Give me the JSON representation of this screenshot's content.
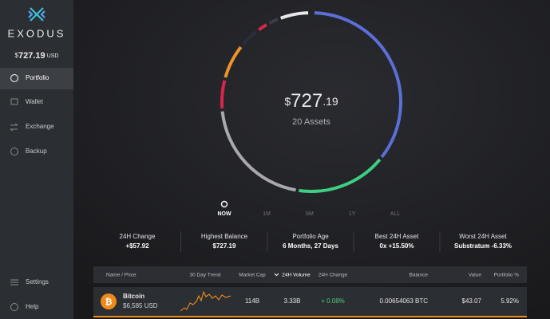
{
  "sidebar": {
    "brand": "EXODUS",
    "balance_symbol": "$",
    "balance": "727.19",
    "balance_unit": "USD",
    "nav": [
      "Portfolio",
      "Wallet",
      "Exchange",
      "Backup"
    ],
    "footer_nav": [
      "Settings",
      "Help"
    ]
  },
  "portfolio": {
    "symbol": "$",
    "amount_whole": "727",
    "amount_cents": ".19",
    "assets": "20 Assets",
    "ranges": [
      "NOW",
      "1M",
      "6M",
      "1Y",
      "ALL"
    ]
  },
  "stats": [
    {
      "label": "24H Change",
      "value": "+$57.92"
    },
    {
      "label": "Highest Balance",
      "value": "$727.19"
    },
    {
      "label": "Portfolio Age",
      "value": "6 Months, 27 Days"
    },
    {
      "label": "Best 24H Asset",
      "value": "0x +15.50%"
    },
    {
      "label": "Worst 24H Asset",
      "value": "Substratum -6.33%"
    }
  ],
  "table": {
    "columns": [
      "Name / Price",
      "30 Day Trend",
      "Market Cap",
      "24H Volume",
      "24H Change",
      "Balance",
      "Value",
      "Portfolio %"
    ],
    "rows": [
      [
        "Bitcoin",
        "$6,585 USD",
        "114B",
        "3.33B",
        "+ 0.08%",
        "0.00654063 BTC",
        "$43.07",
        "5.92%"
      ]
    ]
  }
}
